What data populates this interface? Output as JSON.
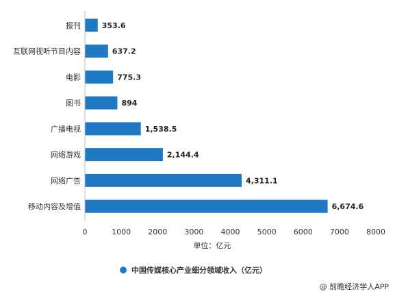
{
  "chart_data": {
    "type": "bar",
    "orientation": "horizontal",
    "categories": [
      "报刊",
      "互联网视听节目内容",
      "电影",
      "图书",
      "广播电视",
      "网络游戏",
      "网络广告",
      "移动内容及增值"
    ],
    "series": [
      {
        "name": "中国传媒核心产业细分领域收入（亿元）",
        "values": [
          353.6,
          637.2,
          775.3,
          894,
          1538.5,
          2144.4,
          4311.1,
          6674.6
        ],
        "labels": [
          "353.6",
          "637.2",
          "775.3",
          "894",
          "1,538.5",
          "2,144.4",
          "4,311.1",
          "6,674.6"
        ]
      }
    ],
    "xlabel": "单位：亿元",
    "xlim": [
      0,
      8000
    ],
    "xticks": [
      0,
      1000,
      2000,
      3000,
      4000,
      5000,
      6000,
      7000,
      8000
    ],
    "grid": false,
    "legend_position": "bottom",
    "bar_color": "#1f7ac3"
  },
  "source": "@ 前瞻经济学人APP"
}
